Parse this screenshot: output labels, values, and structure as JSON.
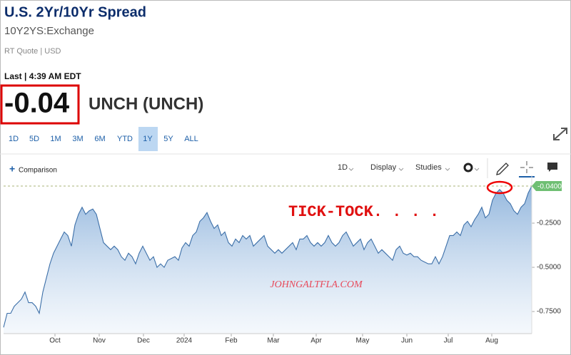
{
  "header": {
    "title": "U.S. 2Yr/10Yr Spread",
    "symbol": "10Y2YS:Exchange",
    "quote_info": "RT Quote | USD"
  },
  "quote": {
    "last_label": "Last | 4:39 AM EDT",
    "price": "-0.04",
    "change": "UNCH (UNCH)"
  },
  "ranges": {
    "items": [
      "1D",
      "5D",
      "1M",
      "3M",
      "6M",
      "YTD",
      "1Y",
      "5Y",
      "ALL"
    ],
    "selected": 6
  },
  "toolbar": {
    "comparison": "Comparison",
    "interval": "1D",
    "display": "Display",
    "studies": "Studies"
  },
  "chart_data": {
    "type": "area",
    "color": "#3c6fa8",
    "values": [
      -0.84,
      -0.76,
      -0.76,
      -0.72,
      -0.7,
      -0.68,
      -0.64,
      -0.7,
      -0.7,
      -0.72,
      -0.76,
      -0.64,
      -0.56,
      -0.48,
      -0.42,
      -0.38,
      -0.34,
      -0.3,
      -0.32,
      -0.38,
      -0.26,
      -0.2,
      -0.16,
      -0.2,
      -0.18,
      -0.17,
      -0.2,
      -0.28,
      -0.36,
      -0.38,
      -0.4,
      -0.38,
      -0.4,
      -0.44,
      -0.46,
      -0.42,
      -0.44,
      -0.48,
      -0.42,
      -0.38,
      -0.42,
      -0.46,
      -0.44,
      -0.5,
      -0.48,
      -0.5,
      -0.46,
      -0.45,
      -0.44,
      -0.46,
      -0.39,
      -0.36,
      -0.38,
      -0.32,
      -0.3,
      -0.24,
      -0.22,
      -0.19,
      -0.24,
      -0.28,
      -0.26,
      -0.32,
      -0.3,
      -0.36,
      -0.38,
      -0.34,
      -0.36,
      -0.32,
      -0.34,
      -0.32,
      -0.38,
      -0.36,
      -0.34,
      -0.32,
      -0.38,
      -0.4,
      -0.42,
      -0.4,
      -0.42,
      -0.4,
      -0.38,
      -0.36,
      -0.4,
      -0.34,
      -0.34,
      -0.32,
      -0.36,
      -0.38,
      -0.36,
      -0.38,
      -0.36,
      -0.32,
      -0.36,
      -0.38,
      -0.36,
      -0.32,
      -0.3,
      -0.34,
      -0.38,
      -0.36,
      -0.34,
      -0.4,
      -0.36,
      -0.34,
      -0.38,
      -0.42,
      -0.4,
      -0.42,
      -0.44,
      -0.46,
      -0.4,
      -0.38,
      -0.42,
      -0.43,
      -0.42,
      -0.44,
      -0.44,
      -0.46,
      -0.47,
      -0.48,
      -0.48,
      -0.44,
      -0.48,
      -0.44,
      -0.38,
      -0.32,
      -0.32,
      -0.3,
      -0.32,
      -0.26,
      -0.24,
      -0.27,
      -0.23,
      -0.2,
      -0.16,
      -0.22,
      -0.2,
      -0.12,
      -0.08,
      -0.06,
      -0.08,
      -0.12,
      -0.14,
      -0.18,
      -0.2,
      -0.16,
      -0.14,
      -0.08,
      -0.04
    ],
    "xlim": [
      0,
      148
    ],
    "xticks": [
      {
        "value": 14.4,
        "label": "Oct"
      },
      {
        "value": 26.8,
        "label": "Nov"
      },
      {
        "value": 39.2,
        "label": "Dec"
      },
      {
        "value": 50.6,
        "label": "2024"
      },
      {
        "value": 63.8,
        "label": "Feb"
      },
      {
        "value": 75.6,
        "label": "Mar"
      },
      {
        "value": 87.6,
        "label": "Apr"
      },
      {
        "value": 100.6,
        "label": "May"
      },
      {
        "value": 113,
        "label": "Jun"
      },
      {
        "value": 124.6,
        "label": "Jul"
      },
      {
        "value": 136.8,
        "label": "Aug"
      }
    ],
    "ylim": [
      -0.875,
      -0.02
    ],
    "yticks": [
      {
        "value": -0.25,
        "label": "-0.2500"
      },
      {
        "value": -0.5,
        "label": "-0.5000"
      },
      {
        "value": -0.75,
        "label": "-0.7500"
      }
    ],
    "price_line": {
      "value": -0.04,
      "label": "-0.0400"
    },
    "annotations": [
      "TICK-TOCK. . . .",
      "JOHNGALTFLA.COM"
    ]
  }
}
